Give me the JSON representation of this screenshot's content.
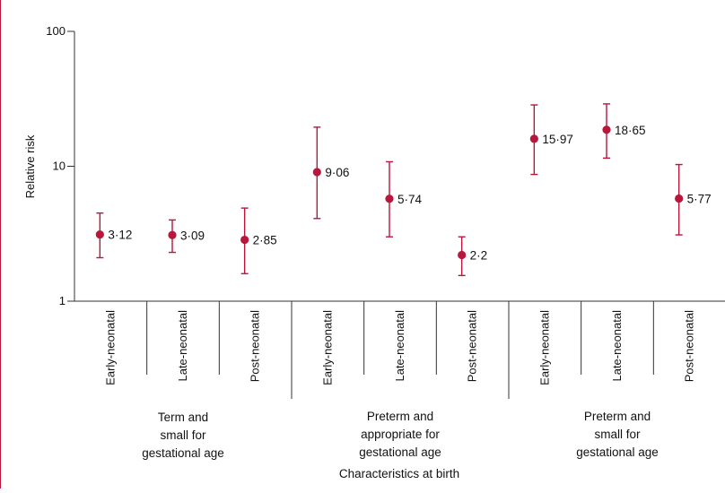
{
  "chart_data": {
    "type": "scatter",
    "ylabel": "Relative risk",
    "xlabel": "Characteristics at birth",
    "yscale": "log",
    "ylim": [
      1,
      100
    ],
    "yticks": [
      "1",
      "10",
      "100"
    ],
    "grid": false,
    "colors": {
      "marker": "#b8163a",
      "axis": "#333333"
    },
    "groups": [
      {
        "label_lines": [
          "Term and",
          "small for",
          "gestational age"
        ],
        "categories": [
          "Early-neonatal",
          "Late-neonatal",
          "Post-neonatal"
        ],
        "values": [
          3.12,
          3.09,
          2.85
        ],
        "value_labels": [
          "3·12",
          "3·09",
          "2·85"
        ],
        "lower": [
          2.1,
          2.3,
          1.6
        ],
        "upper": [
          4.5,
          4.0,
          4.9
        ]
      },
      {
        "label_lines": [
          "Preterm and",
          "appropriate for",
          "gestational age"
        ],
        "categories": [
          "Early-neonatal",
          "Late-neonatal",
          "Post-neonatal"
        ],
        "values": [
          9.06,
          5.74,
          2.2
        ],
        "value_labels": [
          "9·06",
          "5·74",
          "2·2"
        ],
        "lower": [
          4.1,
          3.0,
          1.55
        ],
        "upper": [
          19.5,
          10.8,
          3.0
        ]
      },
      {
        "label_lines": [
          "Preterm and",
          "small for",
          "gestational age"
        ],
        "categories": [
          "Early-neonatal",
          "Late-neonatal",
          "Post-neonatal"
        ],
        "values": [
          15.97,
          18.65,
          5.77
        ],
        "value_labels": [
          "15·97",
          "18·65",
          "5·77"
        ],
        "lower": [
          8.7,
          11.5,
          3.1
        ],
        "upper": [
          28.5,
          29.0,
          10.3
        ]
      }
    ]
  }
}
